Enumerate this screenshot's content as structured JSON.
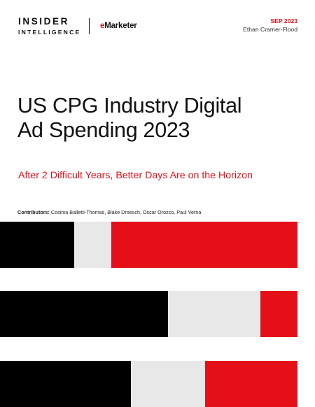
{
  "header": {
    "logo_line1": "INSIDER",
    "logo_line2": "INTELLIGENCE",
    "emarketer_e": "e",
    "emarketer_rest": "Marketer",
    "date": "SEP 2023",
    "author": "Ethan Cramer-Flood"
  },
  "report": {
    "title_line1": "US CPG Industry Digital",
    "title_line2": "Ad Spending 2023",
    "subtitle": "After 2 Difficult Years, Better Days Are on the Horizon",
    "contributors_label": "Contributors:",
    "contributors_names": "Cosima Balletti-Thomas, Blake Droesch, Oscar Orozco, Paul Verna"
  },
  "decorative_bars": [
    {
      "black": 0.25,
      "gray": 0.125,
      "red": 0.625
    },
    {
      "black": 0.565,
      "gray": 0.31,
      "red": 0.125
    },
    {
      "black": 0.44,
      "gray": 0.25,
      "red": 0.31
    }
  ],
  "colors": {
    "brand_red": "#e50f18",
    "black": "#000000",
    "gray": "#e8e8e8"
  }
}
